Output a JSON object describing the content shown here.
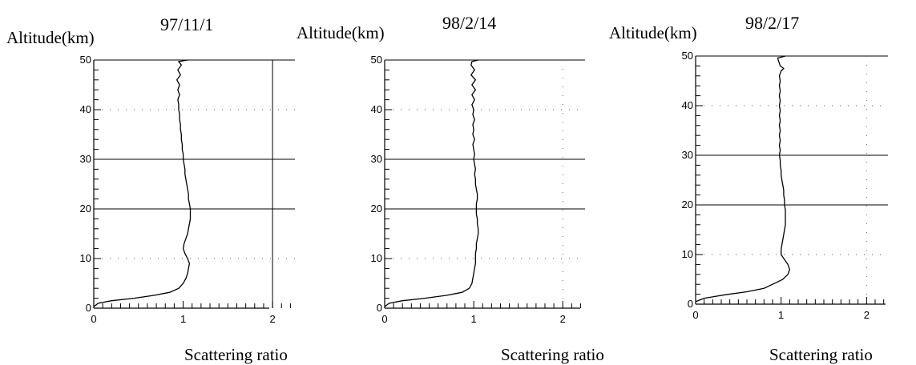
{
  "chart_data": [
    {
      "type": "line",
      "title": "97/11/1",
      "ylabel": "Altitude(km)",
      "xlabel": "Scattering ratio",
      "xlim": [
        0,
        2.25
      ],
      "ylim": [
        0,
        50
      ],
      "x_ticks": [
        "0",
        "1",
        "2"
      ],
      "y_ticks": [
        "0",
        "10",
        "20",
        "30",
        "40",
        "50"
      ],
      "series": [
        {
          "points": [
            [
              0.0,
              0.3
            ],
            [
              0.05,
              1.0
            ],
            [
              0.2,
              1.5
            ],
            [
              0.45,
              2.0
            ],
            [
              0.68,
              2.6
            ],
            [
              0.85,
              3.2
            ],
            [
              0.95,
              4.0
            ],
            [
              1.0,
              5.0
            ],
            [
              1.03,
              6.0
            ],
            [
              1.05,
              7.0
            ],
            [
              1.06,
              8.0
            ],
            [
              1.07,
              9.0
            ],
            [
              1.05,
              10.0
            ],
            [
              1.02,
              11.0
            ],
            [
              1.0,
              12.0
            ],
            [
              1.01,
              13.0
            ],
            [
              1.03,
              14.0
            ],
            [
              1.05,
              15.0
            ],
            [
              1.06,
              16.0
            ],
            [
              1.07,
              17.0
            ],
            [
              1.08,
              18.0
            ],
            [
              1.08,
              19.0
            ],
            [
              1.08,
              20.0
            ],
            [
              1.07,
              21.0
            ],
            [
              1.06,
              22.0
            ],
            [
              1.06,
              23.0
            ],
            [
              1.05,
              24.0
            ],
            [
              1.04,
              25.0
            ],
            [
              1.03,
              26.0
            ],
            [
              1.02,
              27.0
            ],
            [
              1.02,
              28.0
            ],
            [
              1.01,
              29.0
            ],
            [
              1.0,
              30.0
            ],
            [
              1.0,
              31.0
            ],
            [
              0.99,
              32.0
            ],
            [
              0.99,
              33.0
            ],
            [
              0.98,
              34.0
            ],
            [
              0.98,
              35.0
            ],
            [
              0.97,
              36.0
            ],
            [
              0.97,
              37.0
            ],
            [
              0.96,
              38.0
            ],
            [
              0.96,
              39.0
            ],
            [
              0.95,
              40.0
            ],
            [
              0.95,
              41.0
            ],
            [
              0.94,
              42.0
            ],
            [
              0.96,
              43.0
            ],
            [
              0.94,
              44.0
            ],
            [
              0.96,
              45.0
            ],
            [
              0.93,
              46.0
            ],
            [
              0.97,
              47.0
            ],
            [
              0.94,
              48.0
            ],
            [
              0.98,
              49.0
            ],
            [
              0.95,
              49.7
            ],
            [
              1.05,
              50.0
            ]
          ]
        }
      ]
    },
    {
      "type": "line",
      "title": "98/2/14",
      "ylabel": "Altitude(km)",
      "xlabel": "Scattering ratio",
      "xlim": [
        0,
        2.25
      ],
      "ylim": [
        0,
        50
      ],
      "x_ticks": [
        "0",
        "1",
        "2"
      ],
      "y_ticks": [
        "0",
        "10",
        "20",
        "30",
        "40",
        "50"
      ],
      "series": [
        {
          "points": [
            [
              0.0,
              0.3
            ],
            [
              0.05,
              1.0
            ],
            [
              0.2,
              1.5
            ],
            [
              0.45,
              2.0
            ],
            [
              0.7,
              2.6
            ],
            [
              0.87,
              3.2
            ],
            [
              0.95,
              4.0
            ],
            [
              0.98,
              5.0
            ],
            [
              0.99,
              6.0
            ],
            [
              1.0,
              7.0
            ],
            [
              1.01,
              8.0
            ],
            [
              1.02,
              9.0
            ],
            [
              1.02,
              10.0
            ],
            [
              1.02,
              11.0
            ],
            [
              1.03,
              12.0
            ],
            [
              1.03,
              13.0
            ],
            [
              1.04,
              14.0
            ],
            [
              1.05,
              15.0
            ],
            [
              1.05,
              16.0
            ],
            [
              1.04,
              17.0
            ],
            [
              1.04,
              18.0
            ],
            [
              1.03,
              19.0
            ],
            [
              1.03,
              20.0
            ],
            [
              1.03,
              21.0
            ],
            [
              1.04,
              22.0
            ],
            [
              1.04,
              23.0
            ],
            [
              1.03,
              24.0
            ],
            [
              1.02,
              25.0
            ],
            [
              1.02,
              26.0
            ],
            [
              1.01,
              27.0
            ],
            [
              1.02,
              28.0
            ],
            [
              1.01,
              29.0
            ],
            [
              1.0,
              30.0
            ],
            [
              1.01,
              31.0
            ],
            [
              1.0,
              32.0
            ],
            [
              0.99,
              33.0
            ],
            [
              1.01,
              34.0
            ],
            [
              0.99,
              35.0
            ],
            [
              1.0,
              36.0
            ],
            [
              0.99,
              37.0
            ],
            [
              1.01,
              38.0
            ],
            [
              0.99,
              39.0
            ],
            [
              1.0,
              40.0
            ],
            [
              0.98,
              41.0
            ],
            [
              1.01,
              42.0
            ],
            [
              0.98,
              43.0
            ],
            [
              1.02,
              44.0
            ],
            [
              0.98,
              45.0
            ],
            [
              1.02,
              46.0
            ],
            [
              0.97,
              47.0
            ],
            [
              1.01,
              48.0
            ],
            [
              0.97,
              49.0
            ],
            [
              0.98,
              49.7
            ],
            [
              1.05,
              50.0
            ]
          ]
        }
      ]
    },
    {
      "type": "line",
      "title": "98/2/17",
      "ylabel": "Altitude(km)",
      "xlabel": "Scattering ratio",
      "xlim": [
        0,
        2.25
      ],
      "ylim": [
        0,
        50
      ],
      "x_ticks": [
        "0",
        "1",
        "2"
      ],
      "y_ticks": [
        "0",
        "10",
        "20",
        "30",
        "40",
        "50"
      ],
      "series": [
        {
          "points": [
            [
              0.0,
              0.5
            ],
            [
              0.1,
              1.2
            ],
            [
              0.35,
              1.9
            ],
            [
              0.6,
              2.5
            ],
            [
              0.8,
              3.2
            ],
            [
              0.9,
              4.0
            ],
            [
              0.95,
              4.4
            ],
            [
              1.02,
              5.0
            ],
            [
              1.08,
              6.0
            ],
            [
              1.1,
              7.0
            ],
            [
              1.08,
              8.0
            ],
            [
              1.04,
              9.0
            ],
            [
              1.0,
              10.0
            ],
            [
              1.0,
              11.0
            ],
            [
              1.01,
              12.0
            ],
            [
              1.02,
              13.0
            ],
            [
              1.03,
              14.0
            ],
            [
              1.04,
              15.0
            ],
            [
              1.05,
              16.0
            ],
            [
              1.05,
              17.0
            ],
            [
              1.05,
              18.0
            ],
            [
              1.05,
              19.0
            ],
            [
              1.04,
              20.0
            ],
            [
              1.04,
              21.0
            ],
            [
              1.03,
              22.0
            ],
            [
              1.03,
              23.0
            ],
            [
              1.02,
              24.0
            ],
            [
              1.01,
              25.0
            ],
            [
              1.0,
              26.0
            ],
            [
              1.0,
              27.0
            ],
            [
              0.99,
              28.0
            ],
            [
              0.99,
              29.0
            ],
            [
              0.98,
              30.0
            ],
            [
              0.99,
              31.0
            ],
            [
              0.98,
              32.0
            ],
            [
              0.99,
              33.0
            ],
            [
              0.98,
              34.0
            ],
            [
              0.99,
              35.0
            ],
            [
              0.98,
              36.0
            ],
            [
              0.99,
              37.0
            ],
            [
              0.98,
              38.0
            ],
            [
              0.99,
              39.0
            ],
            [
              0.98,
              40.0
            ],
            [
              0.99,
              41.0
            ],
            [
              0.98,
              42.0
            ],
            [
              0.99,
              43.0
            ],
            [
              0.98,
              44.0
            ],
            [
              0.99,
              45.0
            ],
            [
              0.98,
              46.0
            ],
            [
              1.0,
              47.0
            ],
            [
              1.03,
              47.5
            ],
            [
              0.99,
              48.0
            ],
            [
              0.97,
              49.0
            ],
            [
              0.96,
              49.6
            ],
            [
              1.05,
              50.0
            ]
          ]
        }
      ]
    }
  ]
}
